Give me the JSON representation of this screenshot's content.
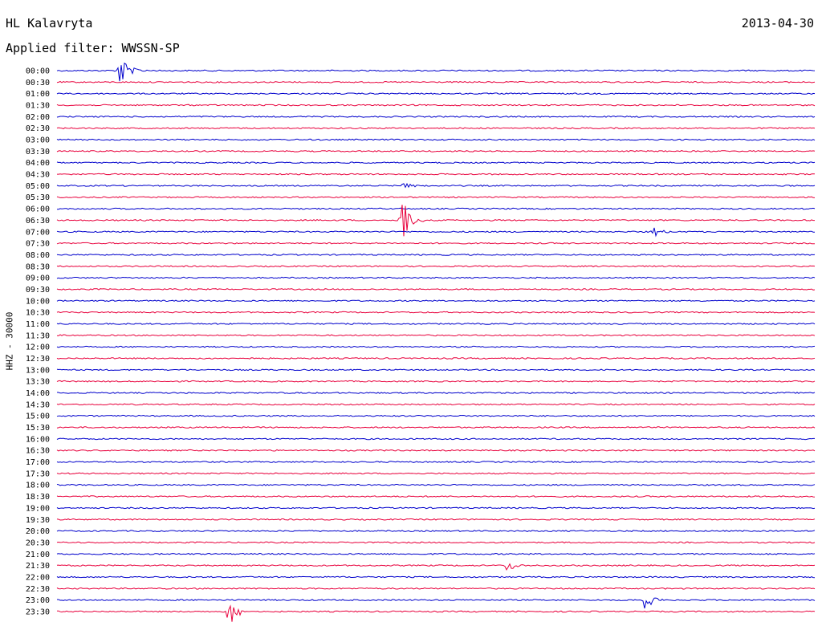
{
  "header": {
    "station": "HL Kalavryta",
    "date": "2013-04-30",
    "filter": "Applied filter: WWSSN-SP"
  },
  "side_label": "HHZ - 30000",
  "colors": {
    "even_row": "#0000cc",
    "odd_row": "#e8003c"
  },
  "chart_data": {
    "type": "line",
    "title": "HL Kalavryta",
    "ylabel": "HHZ - 30000",
    "rows": [
      "00:00",
      "00:30",
      "01:00",
      "01:30",
      "02:00",
      "02:30",
      "03:00",
      "03:30",
      "04:00",
      "04:30",
      "05:00",
      "05:30",
      "06:00",
      "06:30",
      "07:00",
      "07:30",
      "08:00",
      "08:30",
      "09:00",
      "09:30",
      "10:00",
      "10:30",
      "11:00",
      "11:30",
      "12:00",
      "12:30",
      "13:00",
      "13:30",
      "14:00",
      "14:30",
      "15:00",
      "15:30",
      "16:00",
      "16:30",
      "17:00",
      "17:30",
      "18:00",
      "18:30",
      "19:00",
      "19:30",
      "20:00",
      "20:30",
      "21:00",
      "21:30",
      "22:00",
      "22:30",
      "23:00",
      "23:30"
    ],
    "x_range_minutes": [
      0,
      30
    ],
    "grid": false,
    "events": [
      {
        "row": "00:00",
        "minute": 2.5,
        "amplitude": 22
      },
      {
        "row": "05:00",
        "minute": 13.7,
        "amplitude": 8
      },
      {
        "row": "06:30",
        "minute": 13.6,
        "amplitude": 40
      },
      {
        "row": "07:00",
        "minute": 23.6,
        "amplitude": 6
      },
      {
        "row": "21:30",
        "minute": 17.8,
        "amplitude": 8
      },
      {
        "row": "23:00",
        "minute": 23.2,
        "amplitude": 14
      },
      {
        "row": "23:30",
        "minute": 6.8,
        "amplitude": 22
      }
    ]
  }
}
